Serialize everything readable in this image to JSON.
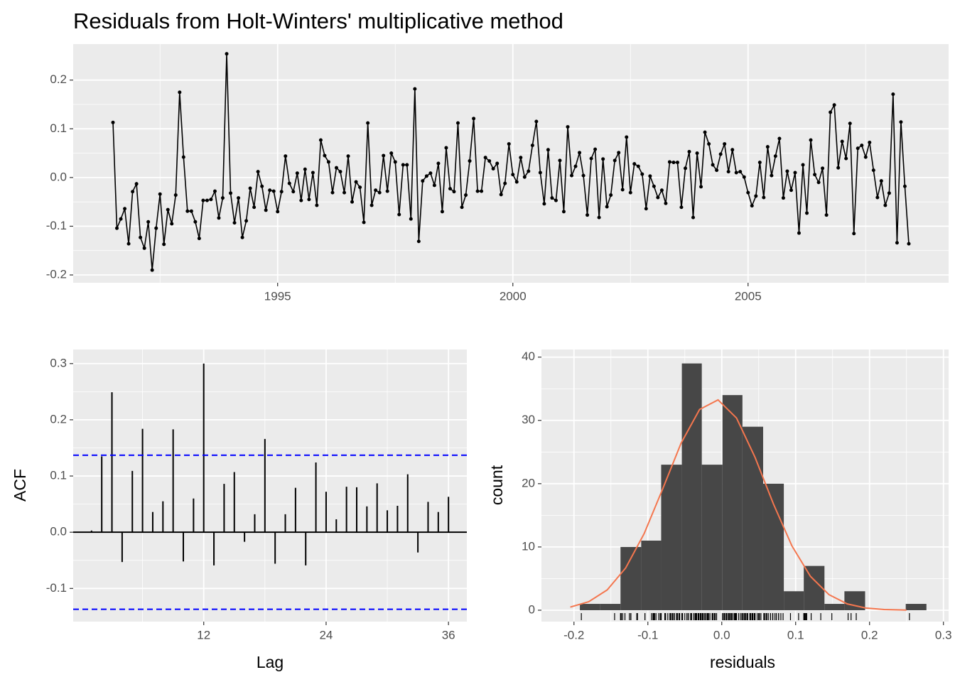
{
  "chart_data": [
    {
      "type": "line",
      "title": "Residuals from Holt-Winters' multiplicative method",
      "color": "#000000",
      "x": [
        1991.5,
        1991.583,
        1991.667,
        1991.75,
        1991.833,
        1991.917,
        1992,
        1992.083,
        1992.167,
        1992.25,
        1992.333,
        1992.417,
        1992.5,
        1992.583,
        1992.667,
        1992.75,
        1992.833,
        1992.917,
        1993,
        1993.083,
        1993.167,
        1993.25,
        1993.333,
        1993.417,
        1993.5,
        1993.583,
        1993.667,
        1993.75,
        1993.833,
        1993.917,
        1994,
        1994.083,
        1994.167,
        1994.25,
        1994.333,
        1994.417,
        1994.5,
        1994.583,
        1994.667,
        1994.75,
        1994.833,
        1994.917,
        1995,
        1995.083,
        1995.167,
        1995.25,
        1995.333,
        1995.417,
        1995.5,
        1995.583,
        1995.667,
        1995.75,
        1995.833,
        1995.917,
        1996,
        1996.083,
        1996.167,
        1996.25,
        1996.333,
        1996.417,
        1996.5,
        1996.583,
        1996.667,
        1996.75,
        1996.833,
        1996.917,
        1997,
        1997.083,
        1997.167,
        1997.25,
        1997.333,
        1997.417,
        1997.5,
        1997.583,
        1997.667,
        1997.75,
        1997.833,
        1997.917,
        1998,
        1998.083,
        1998.167,
        1998.25,
        1998.333,
        1998.417,
        1998.5,
        1998.583,
        1998.667,
        1998.75,
        1998.833,
        1998.917,
        1999,
        1999.083,
        1999.167,
        1999.25,
        1999.333,
        1999.417,
        1999.5,
        1999.583,
        1999.667,
        1999.75,
        1999.833,
        1999.917,
        2000,
        2000.083,
        2000.167,
        2000.25,
        2000.333,
        2000.417,
        2000.5,
        2000.583,
        2000.667,
        2000.75,
        2000.833,
        2000.917,
        2001,
        2001.083,
        2001.167,
        2001.25,
        2001.333,
        2001.417,
        2001.5,
        2001.583,
        2001.667,
        2001.75,
        2001.833,
        2001.917,
        2002,
        2002.083,
        2002.167,
        2002.25,
        2002.333,
        2002.417,
        2002.5,
        2002.583,
        2002.667,
        2002.75,
        2002.833,
        2002.917,
        2003,
        2003.083,
        2003.167,
        2003.25,
        2003.333,
        2003.417,
        2003.5,
        2003.583,
        2003.667,
        2003.75,
        2003.833,
        2003.917,
        2004,
        2004.083,
        2004.167,
        2004.25,
        2004.333,
        2004.417,
        2004.5,
        2004.583,
        2004.667,
        2004.75,
        2004.833,
        2004.917,
        2005,
        2005.083,
        2005.167,
        2005.25,
        2005.333,
        2005.417,
        2005.5,
        2005.583,
        2005.667,
        2005.75,
        2005.833,
        2005.917,
        2006,
        2006.083,
        2006.167,
        2006.25,
        2006.333,
        2006.417,
        2006.5,
        2006.583,
        2006.667,
        2006.75,
        2006.833,
        2006.917,
        2007,
        2007.083,
        2007.167,
        2007.25,
        2007.333,
        2007.417,
        2007.5,
        2007.583,
        2007.667,
        2007.75,
        2007.833,
        2007.917,
        2008,
        2008.083,
        2008.167,
        2008.25,
        2008.333,
        2008.417
      ],
      "values": [
        0.113,
        -0.104,
        -0.085,
        -0.064,
        -0.136,
        -0.029,
        -0.013,
        -0.123,
        -0.145,
        -0.091,
        -0.19,
        -0.104,
        -0.034,
        -0.137,
        -0.066,
        -0.095,
        -0.036,
        0.175,
        0.042,
        -0.069,
        -0.069,
        -0.091,
        -0.125,
        -0.047,
        -0.047,
        -0.045,
        -0.028,
        -0.083,
        -0.042,
        0.254,
        -0.032,
        -0.093,
        -0.042,
        -0.123,
        -0.089,
        -0.022,
        -0.061,
        0.012,
        -0.018,
        -0.067,
        -0.026,
        -0.028,
        -0.07,
        -0.029,
        0.044,
        -0.012,
        -0.029,
        0.009,
        -0.047,
        0.017,
        -0.045,
        0.01,
        -0.057,
        0.077,
        0.045,
        0.032,
        -0.031,
        0.02,
        0.012,
        -0.031,
        0.044,
        -0.05,
        -0.009,
        -0.02,
        -0.092,
        0.112,
        -0.057,
        -0.026,
        -0.031,
        0.045,
        -0.028,
        0.05,
        0.032,
        -0.076,
        0.026,
        0.026,
        -0.085,
        0.182,
        -0.131,
        -0.007,
        0.003,
        0.009,
        -0.016,
        0.029,
        -0.07,
        0.061,
        -0.023,
        -0.029,
        0.112,
        -0.061,
        -0.036,
        0.034,
        0.121,
        -0.028,
        -0.028,
        0.041,
        0.034,
        0.018,
        0.029,
        -0.035,
        -0.012,
        0.069,
        0.006,
        -0.009,
        0.041,
        0.001,
        0.013,
        0.066,
        0.115,
        0.01,
        -0.054,
        0.057,
        -0.042,
        -0.047,
        0.035,
        -0.07,
        0.104,
        0.004,
        0.023,
        0.051,
        0.004,
        -0.077,
        0.039,
        0.058,
        -0.082,
        0.038,
        -0.06,
        -0.036,
        0.035,
        0.051,
        -0.025,
        0.083,
        -0.031,
        0.028,
        0.023,
        0.007,
        -0.064,
        0.003,
        -0.018,
        -0.041,
        -0.026,
        -0.053,
        0.032,
        0.031,
        0.031,
        -0.061,
        0.019,
        0.053,
        -0.082,
        0.05,
        -0.019,
        0.093,
        0.069,
        0.026,
        0.015,
        0.048,
        0.069,
        0.012,
        0.057,
        0.01,
        0.012,
        0.001,
        -0.031,
        -0.058,
        -0.038,
        0.031,
        -0.041,
        0.063,
        0.004,
        0.044,
        0.08,
        -0.042,
        0.013,
        -0.026,
        0.01,
        -0.114,
        0.026,
        -0.073,
        0.077,
        0.006,
        -0.01,
        0.019,
        -0.077,
        0.134,
        0.149,
        0.02,
        0.074,
        0.039,
        0.111,
        -0.115,
        0.06,
        0.066,
        0.042,
        0.072,
        0.015,
        -0.041,
        -0.007,
        -0.057,
        -0.032,
        0.171,
        -0.134,
        0.114,
        -0.018,
        -0.136
      ],
      "xlim": [
        1990.654,
        2009.263
      ],
      "xticks": [
        1995,
        2000,
        2005
      ],
      "xminorticks": [
        1992.5,
        1997.5,
        2002.5,
        2007.5
      ],
      "ylim": [
        -0.216,
        0.274
      ],
      "yticks": [
        -0.2,
        -0.1,
        {
          "value": 0,
          "label": "0.0"
        },
        0.1,
        0.2
      ],
      "yminorticks": [
        -0.15,
        -0.05,
        0.05,
        0.15
      ],
      "grid": true
    },
    {
      "type": "bar",
      "xlabel": "Lag",
      "ylabel": "ACF",
      "color": "#000000",
      "x": [
        1,
        2,
        3,
        4,
        5,
        6,
        7,
        8,
        9,
        10,
        11,
        12,
        13,
        14,
        15,
        16,
        17,
        18,
        19,
        20,
        21,
        22,
        23,
        24,
        25,
        26,
        27,
        28,
        29,
        30,
        31,
        32,
        33,
        34,
        35,
        36
      ],
      "values": [
        0.003,
        0.135,
        0.249,
        -0.053,
        0.109,
        0.184,
        0.036,
        0.055,
        0.183,
        -0.052,
        0.06,
        0.3,
        -0.059,
        0.086,
        0.107,
        -0.017,
        0.032,
        0.166,
        -0.056,
        0.032,
        0.079,
        -0.059,
        0.124,
        0.072,
        0.023,
        0.081,
        0.08,
        0.046,
        0.087,
        0.039,
        0.047,
        0.103,
        -0.036,
        0.054,
        0.036,
        0.063
      ],
      "conf_limits": [
        0.137,
        -0.137
      ],
      "conf_color": "#0000ff",
      "xlim": [
        -0.8,
        37.8
      ],
      "xticks": [
        12,
        24,
        36
      ],
      "xminorticks": [
        6,
        18,
        30
      ],
      "ylim": [
        -0.159,
        0.325
      ],
      "yticks": [
        -0.1,
        {
          "value": 0,
          "label": "0.0"
        },
        0.1,
        0.2,
        0.3
      ],
      "yminorticks": [
        -0.05,
        0.05,
        0.15,
        0.25
      ],
      "grid": true
    },
    {
      "type": "histogram",
      "xlabel": "residuals",
      "ylabel": "count",
      "color": "#474747",
      "bins": [
        -0.192,
        -0.165,
        -0.137,
        -0.109,
        -0.082,
        -0.054,
        -0.027,
        0.001,
        0.028,
        0.056,
        0.084,
        0.111,
        0.139,
        0.166,
        0.194,
        0.222,
        0.249,
        0.277
      ],
      "counts": [
        1,
        1,
        10,
        11,
        23,
        39,
        23,
        34,
        29,
        20,
        3,
        7,
        1,
        3,
        0,
        0,
        1
      ],
      "curve": {
        "color": "#f4764e",
        "x": [
          -0.205,
          -0.18,
          -0.155,
          -0.13,
          -0.105,
          -0.08,
          -0.055,
          -0.03,
          -0.005,
          0.02,
          0.045,
          0.07,
          0.095,
          0.12,
          0.145,
          0.17,
          0.195,
          0.22,
          0.25
        ],
        "values": [
          0.49,
          1.35,
          3.21,
          6.68,
          12.11,
          19.15,
          26.41,
          31.73,
          33.24,
          30.37,
          24.18,
          16.78,
          10.16,
          5.36,
          2.47,
          0.99,
          0.35,
          0.11,
          0.02
        ]
      },
      "xlim": [
        -0.244,
        0.307
      ],
      "xticks": [
        -0.2,
        -0.1,
        {
          "value": 0,
          "label": "0.0"
        },
        0.1,
        0.2,
        0.3
      ],
      "xminorticks": [
        -0.15,
        -0.05,
        0.05,
        0.15,
        0.25
      ],
      "ylim": [
        -1.8,
        41.2
      ],
      "yticks": [
        0,
        10,
        20,
        30,
        40
      ],
      "yminorticks": [
        5,
        15,
        25,
        35
      ],
      "grid": true
    }
  ]
}
